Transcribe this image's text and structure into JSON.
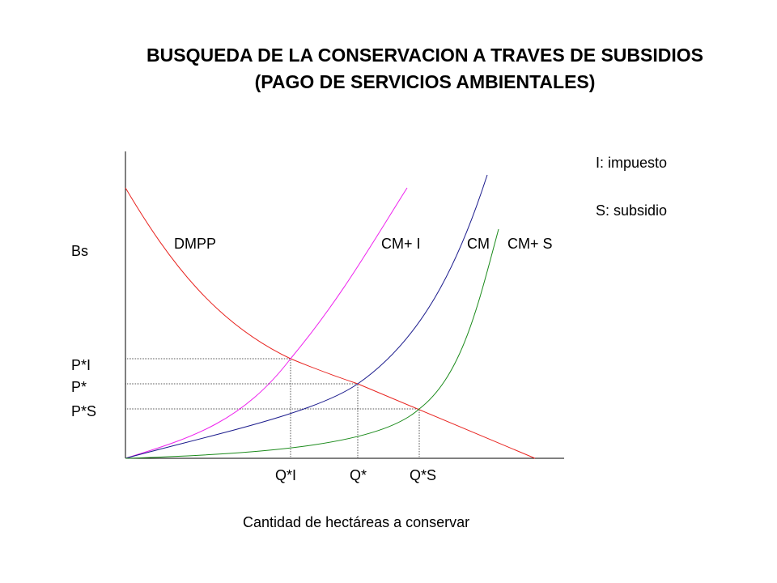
{
  "title": {
    "line1": "BUSQUEDA DE LA CONSERVACION A TRAVES DE SUBSIDIOS",
    "line2": "(PAGO DE SERVICIOS AMBIENTALES)"
  },
  "legend": {
    "tax": "I: impuesto",
    "subsidy": "S: subsidio"
  },
  "axes": {
    "y_label": "Bs",
    "x_label": "Cantidad de hectáreas a conservar"
  },
  "curves": {
    "demand": {
      "label": "DMPP",
      "color": "#e8231f"
    },
    "cost_tax": {
      "label": "CM+ I",
      "color": "#ee22ee"
    },
    "cost": {
      "label": "CM",
      "color": "#1a1a8c"
    },
    "cost_subsidy": {
      "label": "CM+ S",
      "color": "#1a8a1a"
    }
  },
  "price_labels": {
    "p_tax": "P*I",
    "p_eq": "P*",
    "p_sub": "P*S"
  },
  "quantity_labels": {
    "q_tax": "Q*I",
    "q_eq": "Q*",
    "q_sub": "Q*S"
  }
}
